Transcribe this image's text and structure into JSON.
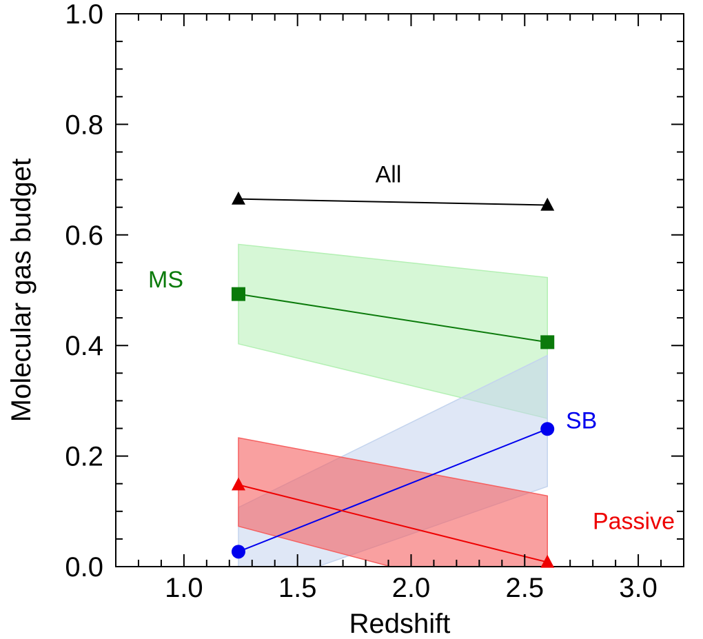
{
  "chart_data": {
    "type": "line",
    "title": "",
    "xlabel": "Redshift",
    "ylabel": "Molecular gas budget",
    "xlim": [
      0.7,
      3.2
    ],
    "ylim": [
      0.0,
      1.0
    ],
    "x_ticks": [
      "1.0",
      "1.5",
      "2.0",
      "2.5",
      "3.0"
    ],
    "y_ticks": [
      "0.0",
      "0.2",
      "0.4",
      "0.6",
      "0.8",
      "1.0"
    ],
    "x_tick_values": [
      1.0,
      1.5,
      2.0,
      2.5,
      3.0
    ],
    "y_tick_values": [
      0.0,
      0.2,
      0.4,
      0.6,
      0.8,
      1.0
    ],
    "grid": false,
    "series": [
      {
        "name": "All",
        "color": "#000000",
        "marker": "triangle",
        "x": [
          1.24,
          2.6
        ],
        "y": [
          0.665,
          0.654
        ]
      },
      {
        "name": "MS",
        "color": "#0a7a0a",
        "band_color": "#b4f0b4",
        "marker": "square",
        "x": [
          1.24,
          2.6
        ],
        "y": [
          0.493,
          0.406
        ],
        "band_upper": [
          0.583,
          0.523
        ],
        "band_lower": [
          0.403,
          0.268
        ]
      },
      {
        "name": "SB",
        "color": "#0000ee",
        "band_color": "#c4d4ee",
        "marker": "circle",
        "x": [
          1.24,
          2.6
        ],
        "y": [
          0.027,
          0.249
        ],
        "band_upper": [
          0.107,
          0.382
        ],
        "band_lower": [
          -0.05,
          0.145
        ]
      },
      {
        "name": "Passive",
        "color": "#ee0000",
        "band_color": "#f56060",
        "marker": "triangle",
        "x": [
          1.24,
          2.6
        ],
        "y": [
          0.148,
          0.008
        ],
        "band_upper": [
          0.233,
          0.128
        ],
        "band_lower": [
          0.073,
          -0.075
        ]
      }
    ],
    "annotations": [
      {
        "text": "All",
        "series": "All",
        "x": 1.9,
        "y": 0.71
      },
      {
        "text": "MS",
        "series": "MS",
        "x": 0.92,
        "y": 0.52
      },
      {
        "text": "SB",
        "series": "SB",
        "x": 2.75,
        "y": 0.265
      },
      {
        "text": "Passive",
        "series": "Passive",
        "x": 2.98,
        "y": 0.083
      }
    ]
  }
}
